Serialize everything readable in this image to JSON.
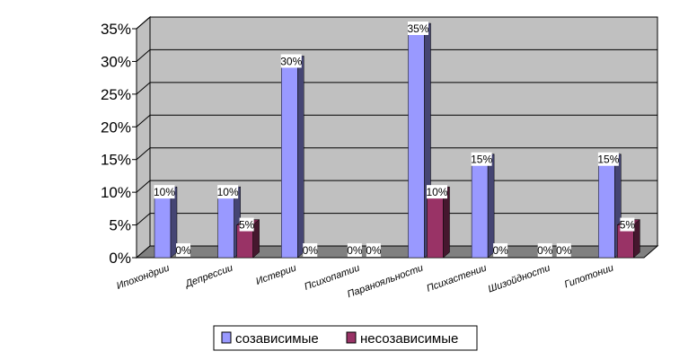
{
  "chart_data": {
    "type": "bar",
    "categories": [
      "Ипохондрии",
      "Депрессии",
      "Истерии",
      "Психопатии",
      "Паранояльности",
      "Психастении",
      "Шизойдности",
      "Гипотонии"
    ],
    "series": [
      {
        "name": "созависимые",
        "values": [
          10,
          10,
          30,
          0,
          35,
          15,
          0,
          15
        ],
        "labels": [
          "10%",
          "10%",
          "30%",
          "0%",
          "35%",
          "15%",
          "0%",
          "15%"
        ],
        "color": "#9999FF"
      },
      {
        "name": "несозависимые",
        "values": [
          0,
          5,
          0,
          0,
          10,
          0,
          0,
          5
        ],
        "labels": [
          "0%",
          "5%",
          "0%",
          "0%",
          "10%",
          "0%",
          "0%",
          "5%"
        ],
        "color": "#993366"
      }
    ],
    "yticks": [
      "0%",
      "5%",
      "10%",
      "15%",
      "20%",
      "25%",
      "30%",
      "35%"
    ],
    "ylim": [
      0,
      35
    ],
    "grid": true,
    "legend_position": "bottom",
    "colors": {
      "wall": "#C0C0C0",
      "floor": "#808080",
      "gridline": "#000000"
    }
  }
}
